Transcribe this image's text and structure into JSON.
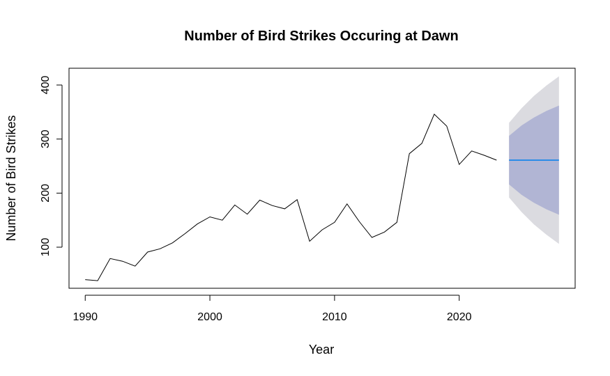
{
  "chart_data": {
    "type": "line",
    "title": "Number of Bird Strikes Occuring at Dawn",
    "xlabel": "Year",
    "ylabel": "Number of Bird Strikes",
    "xlim": [
      1988.7,
      2029.3
    ],
    "ylim": [
      24,
      431
    ],
    "x_ticks": [
      "1990",
      "2000",
      "2010",
      "2020"
    ],
    "y_ticks": [
      "100",
      "200",
      "300",
      "400"
    ],
    "series": [
      {
        "x": [
          1990,
          1991,
          1992,
          1993,
          1994,
          1995,
          1996,
          1997,
          1998,
          1999,
          2000,
          2001,
          2002,
          2003,
          2004,
          2005,
          2006,
          2007,
          2008,
          2009,
          2010,
          2011,
          2012,
          2013,
          2014,
          2015,
          2016,
          2017,
          2018,
          2019,
          2020,
          2021,
          2022,
          2023
        ],
        "values": [
          40,
          38,
          79,
          74,
          65,
          91,
          97,
          108,
          125,
          143,
          156,
          150,
          178,
          161,
          187,
          177,
          171,
          188,
          111,
          132,
          146,
          180,
          147,
          118,
          128,
          146,
          273,
          292,
          346,
          324,
          253,
          278,
          270,
          261
        ],
        "color": "#000000"
      }
    ],
    "forecast": {
      "x": [
        2024,
        2025,
        2026,
        2027,
        2028
      ],
      "mean": [
        261,
        261,
        261,
        261,
        261
      ],
      "lo80": [
        216,
        197,
        182,
        170,
        160
      ],
      "hi80": [
        306,
        325,
        340,
        352,
        362
      ],
      "lo95": [
        192,
        165,
        142,
        123,
        106
      ],
      "hi95": [
        330,
        357,
        380,
        399,
        416
      ],
      "colors": {
        "mean": "#2b8ce8",
        "band80": "#b1b5d4",
        "band95": "#dbdbe0"
      }
    }
  }
}
